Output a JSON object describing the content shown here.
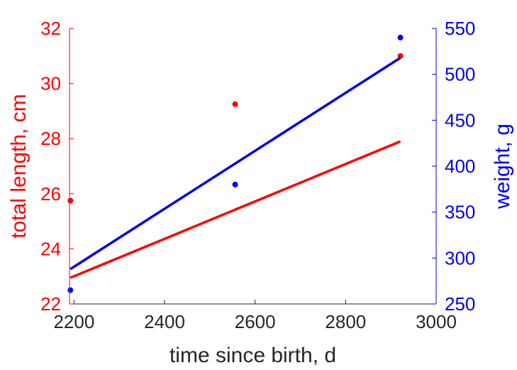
{
  "chart_data": {
    "type": "scatter",
    "xlabel": "time since birth, d",
    "ylabel_left": "total length, cm",
    "ylabel_right": "weight, g",
    "xlim": [
      2190,
      3000
    ],
    "ylim_left": [
      22,
      32
    ],
    "ylim_right": [
      250,
      550
    ],
    "x_ticks": [
      2200,
      2400,
      2600,
      2800,
      3000
    ],
    "y_left_ticks": [
      22,
      24,
      26,
      28,
      30,
      32
    ],
    "y_right_ticks": [
      250,
      300,
      350,
      400,
      450,
      500,
      550
    ],
    "colors": {
      "left": "#ff0000",
      "right": "#0000ee"
    },
    "series": [
      {
        "axis": "left",
        "color": "#ff0000",
        "points": [
          {
            "x": 2192,
            "y": 25.75
          },
          {
            "x": 2556,
            "y": 29.25
          },
          {
            "x": 2921,
            "y": 31.0
          }
        ],
        "fit_line": {
          "x": [
            2192,
            2921
          ],
          "y": [
            22.95,
            27.9
          ]
        }
      },
      {
        "axis": "right",
        "color": "#0000ee",
        "points": [
          {
            "x": 2192,
            "y": 265
          },
          {
            "x": 2556,
            "y": 380
          },
          {
            "x": 2921,
            "y": 540
          }
        ],
        "fit_line": {
          "x": [
            2192,
            2921
          ],
          "y": [
            288,
            518
          ]
        }
      }
    ]
  }
}
